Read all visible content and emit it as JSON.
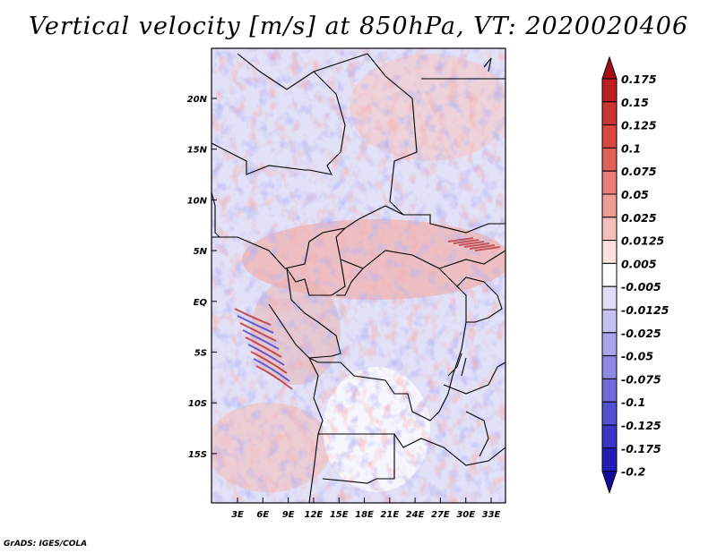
{
  "title": "Vertical velocity [m/s] at 850hPa, VT: 2020020406",
  "map": {
    "lat_labels": [
      "20N",
      "15N",
      "10N",
      "5N",
      "EQ",
      "5S",
      "10S",
      "15S"
    ],
    "lon_labels": [
      "3E",
      "6E",
      "9E",
      "12E",
      "15E",
      "18E",
      "21E",
      "24E",
      "27E",
      "30E",
      "33E"
    ],
    "field_description": "vertical velocity field"
  },
  "colorbar": {
    "labels": [
      "0.175",
      "0.15",
      "0.125",
      "0.1",
      "0.075",
      "0.05",
      "0.025",
      "0.0125",
      "0.005",
      "-0.005",
      "-0.0125",
      "-0.025",
      "-0.05",
      "-0.075",
      "-0.1",
      "-0.125",
      "-0.175",
      "-0.2"
    ],
    "colors": [
      "#a50f15",
      "#bd1f22",
      "#cb3530",
      "#d8483f",
      "#e0605a",
      "#e87d78",
      "#f09d98",
      "#f6bfbb",
      "#fbe0dd",
      "#ffffff",
      "#dedcf6",
      "#c4c2f0",
      "#a8a5ea",
      "#8c88e3",
      "#6f6bdc",
      "#5450d2",
      "#3a35c6",
      "#231eb6",
      "#120c9a"
    ]
  },
  "credit": "GrADS: IGES/COLA"
}
